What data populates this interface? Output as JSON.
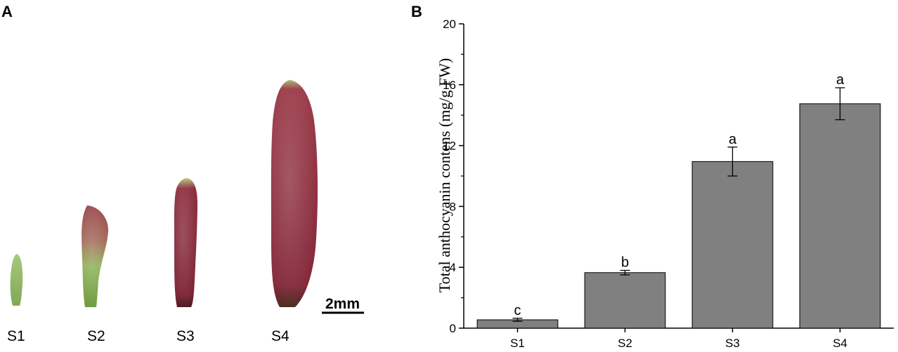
{
  "panel_a": {
    "letter": "A",
    "stage_labels": [
      "S1",
      "S2",
      "S3",
      "S4"
    ],
    "scale_bar_label": "2mm"
  },
  "panel_b": {
    "letter": "B"
  },
  "chart_data": {
    "type": "bar",
    "categories": [
      "S1",
      "S2",
      "S3",
      "S4"
    ],
    "values": [
      0.55,
      3.65,
      10.95,
      14.75
    ],
    "errors": [
      0.1,
      0.15,
      0.95,
      1.05
    ],
    "significance": [
      "c",
      "b",
      "a",
      "a"
    ],
    "title": "",
    "xlabel": "",
    "ylabel": "Total anthocyanin contens (mg/g FW)",
    "ylim": [
      0,
      20
    ],
    "yticks": [
      0,
      4,
      8,
      12,
      16,
      20
    ],
    "bar_color": "#808080",
    "grid": false
  },
  "colors": {
    "petal_green": "#8fb862",
    "petal_red": "#8e2a3c",
    "petal_dark": "#5c1a28"
  }
}
